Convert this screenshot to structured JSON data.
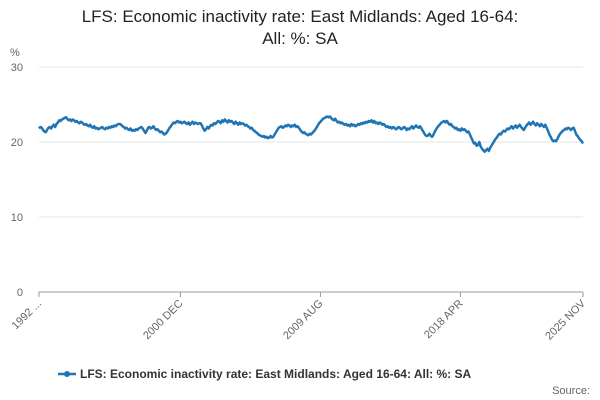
{
  "chart_data": {
    "type": "line",
    "title_lines": [
      "LFS: Economic inactivity rate: East Midlands: Aged 16-64:",
      "All: %: SA"
    ],
    "ylabel": "%",
    "source_label": "Source:",
    "ylim": [
      0,
      30
    ],
    "yticks": [
      0,
      10,
      20,
      30
    ],
    "grid": true,
    "legend": "bottom",
    "categories": [
      "1992 ...",
      null,
      null,
      null,
      null,
      null,
      null,
      null,
      null,
      null,
      null,
      null,
      null,
      null,
      null,
      null,
      null,
      null,
      null,
      null,
      null,
      null,
      null,
      null,
      null,
      null,
      null,
      null,
      null,
      null,
      null,
      null,
      null,
      null,
      null,
      null,
      null,
      null,
      null,
      null,
      null,
      null,
      null,
      null,
      null,
      null,
      null,
      null,
      null,
      null,
      null,
      null,
      null,
      null,
      null,
      null,
      null,
      null,
      null,
      null,
      null,
      null,
      null,
      null,
      null,
      null,
      null,
      null,
      null,
      null,
      null,
      null,
      null,
      null,
      null,
      null,
      null,
      null,
      null,
      null,
      null,
      null,
      null,
      null,
      null,
      null,
      null,
      null,
      null,
      null,
      null,
      null,
      null,
      null,
      null,
      null,
      null,
      null,
      null,
      null,
      null,
      null,
      null,
      null,
      null,
      "2000 DEC",
      null,
      null,
      null,
      null,
      null,
      null,
      null,
      null,
      null,
      null,
      null,
      null,
      null,
      null,
      null,
      null,
      null,
      null,
      null,
      null,
      null,
      null,
      null,
      null,
      null,
      null,
      null,
      null,
      null,
      null,
      null,
      null,
      null,
      null,
      null,
      null,
      null,
      null,
      null,
      null,
      null,
      null,
      null,
      null,
      null,
      null,
      null,
      null,
      null,
      null,
      null,
      null,
      null,
      null,
      null,
      null,
      null,
      null,
      null,
      null,
      null,
      null,
      null,
      null,
      null,
      null,
      null,
      null,
      null,
      null,
      null,
      null,
      null,
      null,
      null,
      null,
      null,
      null,
      null,
      null,
      null,
      null,
      null,
      null,
      null,
      null,
      null,
      null,
      null,
      null,
      null,
      null,
      null,
      null,
      null,
      null,
      null,
      null,
      null,
      null,
      null,
      null,
      null,
      "2009 AUG",
      null,
      null,
      null,
      null,
      null,
      null,
      null,
      null,
      null,
      null,
      null,
      null,
      null,
      null,
      null,
      null,
      null,
      null,
      null,
      null,
      null,
      null,
      null,
      null,
      null,
      null,
      null,
      null,
      null,
      null,
      null,
      null,
      null,
      null,
      null,
      null,
      null,
      null,
      null,
      null,
      null,
      null,
      null,
      null,
      null,
      null,
      null,
      null,
      null,
      null,
      null,
      null,
      null,
      null,
      null,
      null,
      null,
      null,
      null,
      null,
      null,
      null,
      null,
      null,
      null,
      null,
      null,
      null,
      null,
      null,
      null,
      null,
      null,
      null,
      null,
      null,
      null,
      null,
      null,
      null,
      null,
      null,
      null,
      null,
      null,
      null,
      null,
      null,
      null,
      null,
      null,
      null,
      null,
      null,
      null,
      null,
      null,
      null,
      null,
      null,
      null,
      null,
      null,
      "2018 APR",
      null,
      null,
      null,
      null,
      null,
      null,
      null,
      null,
      null,
      null,
      null,
      null,
      null,
      null,
      null,
      null,
      null,
      null,
      null,
      null,
      null,
      null,
      null,
      null,
      null,
      null,
      null,
      null,
      null,
      null,
      null,
      null,
      null,
      null,
      null,
      null,
      null,
      null,
      null,
      null,
      null,
      null,
      null,
      null,
      null,
      null,
      null,
      null,
      null,
      null,
      null,
      null,
      null,
      null,
      null,
      null,
      null,
      null,
      null,
      null,
      null,
      null,
      null,
      null,
      null,
      null,
      null,
      null,
      null,
      null,
      null,
      null,
      null,
      null,
      null,
      null,
      null,
      null,
      null,
      null,
      null,
      null,
      null,
      null,
      null,
      null,
      null,
      null,
      null,
      null,
      "2025 NOV"
    ],
    "series": [
      {
        "name": "LFS: Economic inactivity rate: East Midlands: Aged 16-64: All: %: SA",
        "color": "#1f75b4",
        "values": [
          21.8,
          22.0,
          21.9,
          21.6,
          21.4,
          21.3,
          21.6,
          21.9,
          22.0,
          21.8,
          22.1,
          22.3,
          22.0,
          22.4,
          22.6,
          22.9,
          22.8,
          23.0,
          23.1,
          23.2,
          23.3,
          23.1,
          22.9,
          23.0,
          22.8,
          23.0,
          22.9,
          22.7,
          22.8,
          22.6,
          22.5,
          22.7,
          22.6,
          22.4,
          22.3,
          22.4,
          22.2,
          22.1,
          22.3,
          22.0,
          21.9,
          22.1,
          21.8,
          21.9,
          21.7,
          21.8,
          21.9,
          22.0,
          21.8,
          21.7,
          21.9,
          21.8,
          22.0,
          21.9,
          22.1,
          22.0,
          22.2,
          22.1,
          22.3,
          22.4,
          22.4,
          22.3,
          22.1,
          22.0,
          21.8,
          21.9,
          21.7,
          21.6,
          21.8,
          21.5,
          21.6,
          21.5,
          21.7,
          21.6,
          21.8,
          21.9,
          22.0,
          21.8,
          21.5,
          21.2,
          21.5,
          21.9,
          22.0,
          21.8,
          21.9,
          22.1,
          21.8,
          21.6,
          21.7,
          21.5,
          21.3,
          21.4,
          21.2,
          21.0,
          21.1,
          21.3,
          21.6,
          21.9,
          22.1,
          22.4,
          22.6,
          22.5,
          22.7,
          22.8,
          22.6,
          22.7,
          22.5,
          22.6,
          22.7,
          22.5,
          22.4,
          22.6,
          22.3,
          22.5,
          22.7,
          22.4,
          22.6,
          22.5,
          22.4,
          22.5,
          22.5,
          22.2,
          21.8,
          21.5,
          21.7,
          22.0,
          21.8,
          22.1,
          22.3,
          22.2,
          22.5,
          22.4,
          22.6,
          22.8,
          22.7,
          22.5,
          22.9,
          22.7,
          23.0,
          22.8,
          22.6,
          22.9,
          22.7,
          22.8,
          22.6,
          22.4,
          22.7,
          22.5,
          22.3,
          22.6,
          22.4,
          22.5,
          22.4,
          22.2,
          22.3,
          22.1,
          22.0,
          21.8,
          21.9,
          21.6,
          21.5,
          21.3,
          21.2,
          21.0,
          20.9,
          20.8,
          20.7,
          20.8,
          20.6,
          20.7,
          20.5,
          20.6,
          20.8,
          20.6,
          20.7,
          21.0,
          21.3,
          21.6,
          21.9,
          22.0,
          22.1,
          21.9,
          22.0,
          22.2,
          22.1,
          22.3,
          22.2,
          22.0,
          22.2,
          22.1,
          22.3,
          22.0,
          22.1,
          21.9,
          21.6,
          21.4,
          21.2,
          21.3,
          21.1,
          21.0,
          20.9,
          21.1,
          21.0,
          21.2,
          21.4,
          21.6,
          21.9,
          22.2,
          22.5,
          22.7,
          22.9,
          23.1,
          23.2,
          23.3,
          23.4,
          23.3,
          23.4,
          23.2,
          23.0,
          22.9,
          23.1,
          22.8,
          22.6,
          22.7,
          22.5,
          22.6,
          22.4,
          22.3,
          22.4,
          22.2,
          22.3,
          22.1,
          22.4,
          22.2,
          22.3,
          22.1,
          22.2,
          22.4,
          22.3,
          22.5,
          22.4,
          22.6,
          22.5,
          22.7,
          22.6,
          22.8,
          22.7,
          22.9,
          22.6,
          22.8,
          22.5,
          22.6,
          22.4,
          22.6,
          22.5,
          22.3,
          22.4,
          22.2,
          22.0,
          22.1,
          21.9,
          22.0,
          21.8,
          22.0,
          21.9,
          21.7,
          21.8,
          22.0,
          21.9,
          21.7,
          21.8,
          22.0,
          21.9,
          21.6,
          21.8,
          21.7,
          21.9,
          22.1,
          21.8,
          22.0,
          22.2,
          22.0,
          21.9,
          22.1,
          21.8,
          21.5,
          21.2,
          20.9,
          20.8,
          20.9,
          21.1,
          20.8,
          20.7,
          21.0,
          21.4,
          21.7,
          22.0,
          22.2,
          22.4,
          22.6,
          22.7,
          22.8,
          22.6,
          22.8,
          22.5,
          22.3,
          22.4,
          22.1,
          22.0,
          21.8,
          21.9,
          21.6,
          21.7,
          21.5,
          21.8,
          21.6,
          21.7,
          21.5,
          21.3,
          21.4,
          21.0,
          20.6,
          20.2,
          19.8,
          19.9,
          19.5,
          19.6,
          20.0,
          19.4,
          19.1,
          18.9,
          18.7,
          18.9,
          19.1,
          18.8,
          19.2,
          19.5,
          19.8,
          20.1,
          20.4,
          20.6,
          20.9,
          21.1,
          21.0,
          21.3,
          21.5,
          21.4,
          21.6,
          21.8,
          21.7,
          21.9,
          22.1,
          21.8,
          22.0,
          22.2,
          21.9,
          22.1,
          22.3,
          22.0,
          21.8,
          21.6,
          21.9,
          22.2,
          22.4,
          22.6,
          22.3,
          22.5,
          22.7,
          22.4,
          22.2,
          22.5,
          22.3,
          22.1,
          22.4,
          22.2,
          22.0,
          22.3,
          21.9,
          21.5,
          21.0,
          20.7,
          20.3,
          20.1,
          20.2,
          20.1,
          20.4,
          20.8,
          21.1,
          21.3,
          21.5,
          21.6,
          21.8,
          21.7,
          21.9,
          21.8,
          21.6,
          21.8,
          21.9,
          21.5,
          21.0,
          20.8,
          20.5,
          20.3,
          20.1,
          19.8
        ]
      }
    ]
  }
}
